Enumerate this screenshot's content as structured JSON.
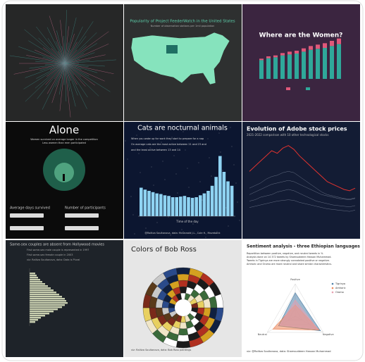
{
  "panels": [
    {
      "kind": "radial"
    },
    {
      "kind": "map",
      "title": "Popularity of Project FeederWatch in the United States",
      "subtitle": "Number of observation stations per 1mil population"
    },
    {
      "kind": "bars",
      "title": "Where are the Women?",
      "men": [
        40,
        44,
        46,
        50,
        52,
        54,
        58,
        62,
        64,
        66,
        70,
        74
      ],
      "women": [
        3,
        4,
        4,
        5,
        6,
        6,
        7,
        8,
        9,
        10,
        11,
        12
      ],
      "ylim": [
        0,
        90
      ]
    },
    {
      "kind": "alone",
      "title": "Alone",
      "lines": [
        "Women survived on average longer in the competition",
        "Less women than men participated"
      ],
      "labels": [
        "Average days survived",
        "Number of participants"
      ]
    },
    {
      "kind": "cats",
      "title": "Cats are nocturnal animals",
      "lines": [
        "When you wake up for work they start to prepare for a nap",
        "On average cats are the most active between 21 and 23 and",
        "and the least active between 13 and 14"
      ],
      "xlabel": "Time of the day",
      "credit": "@Ralitza Soultanova, data: McDonald J.L., Cole H., Movebank",
      "values": [
        45,
        42,
        40,
        38,
        36,
        35,
        33,
        32,
        30,
        30,
        31,
        32,
        30,
        29,
        30,
        33,
        36,
        40,
        48,
        62,
        95,
        70,
        55,
        48
      ],
      "ylim": [
        0,
        100
      ]
    },
    {
      "kind": "lines",
      "title": "Evolution of Adobe stock prices",
      "subtitle": "2021-2022 comparison with 10 other technological stocks",
      "ylim": [
        100,
        700
      ],
      "series": [
        {
          "color": "#e0332f",
          "values": [
            480,
            520,
            560,
            600,
            640,
            620,
            660,
            680,
            650,
            600,
            560,
            520,
            480,
            440,
            400,
            380,
            360,
            340,
            330,
            350
          ]
        },
        {
          "color": "#8a93a6",
          "values": [
            300,
            320,
            340,
            360,
            380,
            390,
            400,
            410,
            400,
            380,
            360,
            340,
            320,
            300,
            290,
            280,
            270,
            265,
            260,
            270
          ]
        },
        {
          "color": "#8a93a6",
          "values": [
            250,
            260,
            280,
            290,
            300,
            320,
            330,
            340,
            330,
            310,
            290,
            270,
            250,
            240,
            230,
            220,
            215,
            210,
            205,
            215
          ]
        },
        {
          "color": "#8a93a6",
          "values": [
            200,
            210,
            220,
            230,
            240,
            250,
            255,
            260,
            255,
            240,
            230,
            220,
            210,
            200,
            190,
            185,
            180,
            175,
            170,
            180
          ]
        },
        {
          "color": "#8a93a6",
          "values": [
            350,
            370,
            390,
            420,
            440,
            450,
            470,
            480,
            470,
            440,
            410,
            380,
            350,
            320,
            300,
            290,
            280,
            270,
            265,
            275
          ]
        }
      ]
    },
    {
      "kind": "hbars",
      "title": "Same-sex couples are absent from Hollywood movies",
      "lines": [
        "First same-sex male couple is represented in 1997",
        "First same-sex female couple in 2003",
        "viz: Ralitza Soultanova, data: Data is Plural"
      ],
      "values": [
        8,
        10,
        12,
        15,
        18,
        22,
        26,
        30,
        34,
        38,
        42,
        46,
        50,
        52,
        54,
        50,
        46,
        40,
        34,
        28,
        22,
        16,
        12,
        8
      ],
      "xlim": [
        0,
        60
      ]
    },
    {
      "kind": "mosaic",
      "title": "Colors of Bob Ross",
      "credit": "viz: Ralitza Soultanova, data: Bob Ross paintings"
    },
    {
      "kind": "radar",
      "title": "Sentiment analysis - three Ethiopian languages",
      "lines": [
        "Repartition between positive, negative, and neutral tweets in %",
        "Analysis done on 14 372 tweets by Shamsuddeen Hassan Muhammad.",
        "Tweets in Tigrinya are more strongly connotated positive or negative.",
        "Amharic and Oromo are more neutral and share similar characteristics."
      ],
      "axes": [
        "Positive",
        "Negative",
        "Neutral"
      ],
      "credit": "viz: @Ralitza Soultanova, data: Shamsuddeen Hassan Muhammad",
      "series": [
        {
          "name": "Tigrinya",
          "color": "#4d7fa8",
          "values": [
            0.72,
            0.9,
            0.6
          ]
        },
        {
          "name": "Amharic",
          "color": "#f0875a",
          "values": [
            0.35,
            0.85,
            0.8
          ]
        },
        {
          "name": "Oromo",
          "color": "#e8a0b0",
          "values": [
            0.5,
            0.8,
            0.55
          ]
        }
      ]
    }
  ]
}
